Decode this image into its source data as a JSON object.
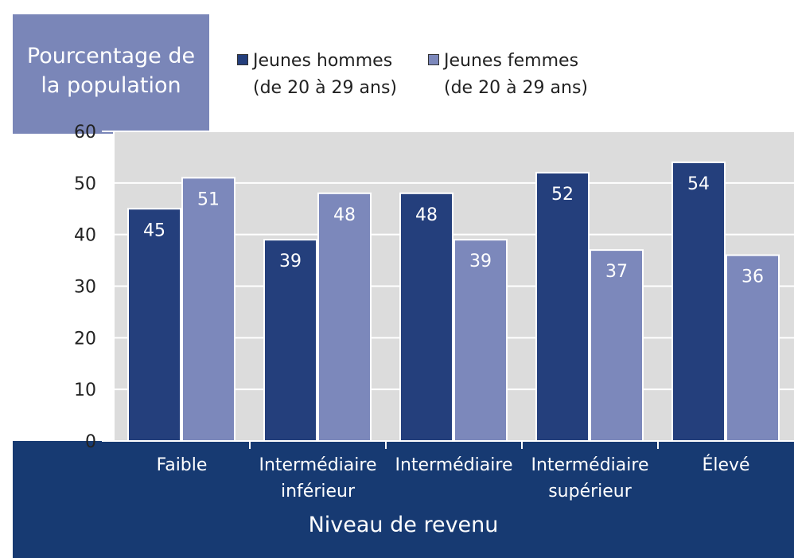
{
  "colors": {
    "men": "#243f7c",
    "women": "#7c88bb",
    "plot_bg": "#dcdcdc",
    "footer_bg": "#173a72",
    "ylabel_bg": "#7a86b8"
  },
  "chart_data": {
    "type": "bar",
    "title": "",
    "ylabel": "Pourcentage de\nla population",
    "xlabel": "Niveau de revenu",
    "ylim": [
      0,
      60
    ],
    "yticks": [
      0,
      10,
      20,
      30,
      40,
      50,
      60
    ],
    "grid": true,
    "legend_position": "top",
    "categories": [
      "Faible",
      "Intermédiaire\ninférieur",
      "Intermédiaire",
      "Intermédiaire\nsupérieur",
      "Élevé"
    ],
    "series": [
      {
        "name": "Jeunes hommes\n(de 20 à 29 ans)",
        "values": [
          45,
          39,
          48,
          52,
          54
        ]
      },
      {
        "name": "Jeunes femmes\n(de 20 à 29 ans)",
        "values": [
          51,
          48,
          39,
          37,
          36
        ]
      }
    ]
  }
}
